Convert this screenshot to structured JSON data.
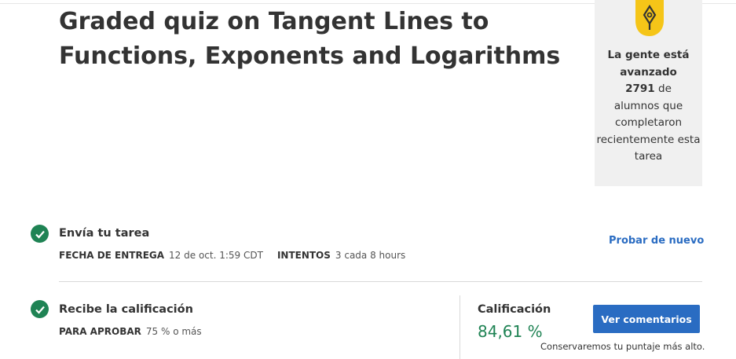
{
  "header": {
    "title": "Graded quiz on Tangent Lines to Functions, Exponents and Logarithms"
  },
  "side_card": {
    "icon": "pen-nib-badge-icon",
    "badge_color": "#f5c518",
    "headline": "La gente está avanzado",
    "count": "2791",
    "count_suffix": "de",
    "body": "alumnos que completaron recientemente esta tarea"
  },
  "submit": {
    "title": "Envía tu tarea",
    "due_label": "FECHA DE ENTREGA",
    "due_value": "12 de oct. 1:59 CDT",
    "attempts_label": "INTENTOS",
    "attempts_value": "3 cada 8 hours",
    "retry_link": "Probar de nuevo",
    "status_icon": "check-circle-icon"
  },
  "grade": {
    "title": "Recibe la calificación",
    "pass_label": "PARA APROBAR",
    "pass_value": "75 % o más",
    "grade_label": "Calificación",
    "grade_value": "84,61 %",
    "feedback_button": "Ver comentarios",
    "keep_note": "Conservaremos tu puntaje más alto.",
    "status_icon": "check-circle-icon"
  },
  "colors": {
    "accent": "#2a6cc2",
    "success": "#1f8354"
  }
}
